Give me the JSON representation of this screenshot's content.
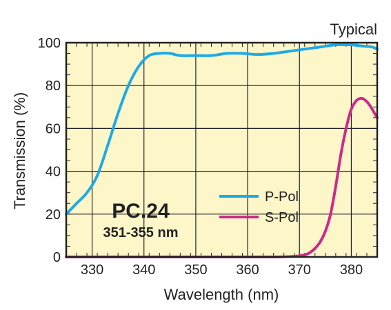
{
  "chart_data": {
    "type": "line",
    "annotation_top_right": "Typical",
    "xlabel": "Wavelength (nm)",
    "ylabel": "Transmission (%)",
    "xlim": [
      325,
      385
    ],
    "ylim": [
      0,
      100
    ],
    "x_ticks": [
      330,
      340,
      350,
      360,
      370,
      380
    ],
    "y_ticks": [
      0,
      20,
      40,
      60,
      80,
      100
    ],
    "grid": true,
    "legend_position": "bottom-right",
    "annotation_title": "PC.24",
    "annotation_subtitle": "351-355 nm",
    "colors": {
      "background": "#fdf6c8",
      "grid": "#222222",
      "p_pol": "#1eaae6",
      "s_pol": "#cc2a8c"
    },
    "series": [
      {
        "name": "P-Pol",
        "x": [
          325,
          327,
          329,
          331,
          333,
          335,
          337,
          339,
          341,
          343,
          345,
          347,
          350,
          353,
          356,
          359,
          362,
          365,
          368,
          371,
          374,
          377,
          380,
          382,
          384,
          385
        ],
        "y": [
          20,
          25,
          30,
          38,
          52,
          67,
          80,
          89,
          94,
          95,
          95,
          94,
          94,
          94,
          95,
          95,
          94.5,
          95,
          96,
          97,
          98,
          99,
          99,
          98.5,
          98,
          97
        ]
      },
      {
        "name": "S-Pol",
        "x": [
          325,
          340,
          355,
          365,
          369,
          371,
          372,
          373,
          374,
          375,
          376,
          377,
          378,
          379,
          380,
          381,
          381.8,
          382.5,
          383.5,
          384.5,
          385
        ],
        "y": [
          0,
          0,
          0,
          0,
          0.3,
          1,
          2,
          4,
          7,
          12,
          20,
          33,
          48,
          60,
          69,
          73,
          74,
          73.5,
          71,
          67,
          65
        ]
      }
    ]
  }
}
